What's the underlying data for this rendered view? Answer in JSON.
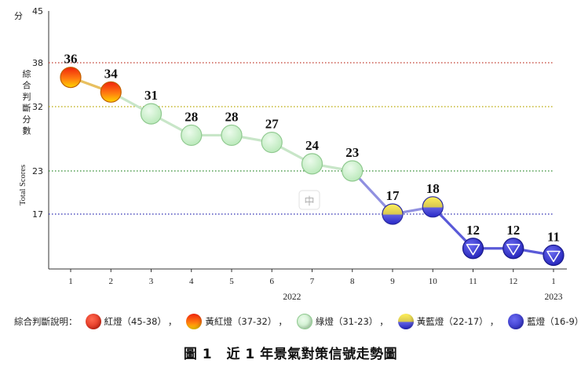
{
  "chart_data": {
    "type": "line",
    "title": "圖 1　近 1 年景氣對策信號走勢圖",
    "caption_num": "圖 1",
    "caption_text": "近 1 年景氣對策信號走勢圖",
    "ylabel_zh": "綜合判斷分數",
    "ylabel_en": "Total Scores",
    "y_unit": "分",
    "ylim": [
      9,
      45
    ],
    "y_ticks": [
      17,
      23,
      32,
      38,
      45
    ],
    "threshold_lines": [
      {
        "value": 38,
        "color": "#c0392b"
      },
      {
        "value": 32,
        "color": "#b8a800"
      },
      {
        "value": 23,
        "color": "#2e8b2e"
      },
      {
        "value": 17,
        "color": "#2a2ab0"
      }
    ],
    "categories": [
      "1",
      "2",
      "3",
      "4",
      "5",
      "6",
      "7",
      "8",
      "9",
      "10",
      "11",
      "12",
      "1"
    ],
    "values": [
      36,
      34,
      31,
      28,
      28,
      27,
      24,
      23,
      17,
      18,
      12,
      12,
      11
    ],
    "signals": [
      "yellow-red",
      "yellow-red",
      "green",
      "green",
      "green",
      "green",
      "green",
      "green",
      "yellow-blue",
      "yellow-blue",
      "blue",
      "blue",
      "blue"
    ],
    "year_labels": [
      {
        "text": "2022",
        "at_index": 5.5
      },
      {
        "text": "2023",
        "at_index": 12
      }
    ],
    "watermark": "中"
  },
  "legend": {
    "title": "綜合判斷說明：",
    "items": [
      {
        "label": "紅燈（45-38）",
        "signal": "red"
      },
      {
        "label": "黃紅燈（37-32）",
        "signal": "yellow-red"
      },
      {
        "label": "綠燈（31-23）",
        "signal": "green"
      },
      {
        "label": "黃藍燈（22-17）",
        "signal": "yellow-blue"
      },
      {
        "label": "藍燈（16-9）",
        "signal": "blue"
      }
    ],
    "separator": "，"
  },
  "colors": {
    "red": "#e8241a",
    "yellow-red-top": "#f02a10",
    "yellow-red-bottom": "#ffd000",
    "green": "#c9f0c9",
    "green-stroke": "#8fc98f",
    "yellow-blue-top": "#ffe24a",
    "yellow-blue-bottom": "#3a3ad8",
    "blue": "#3434d4",
    "axis": "#333333"
  }
}
